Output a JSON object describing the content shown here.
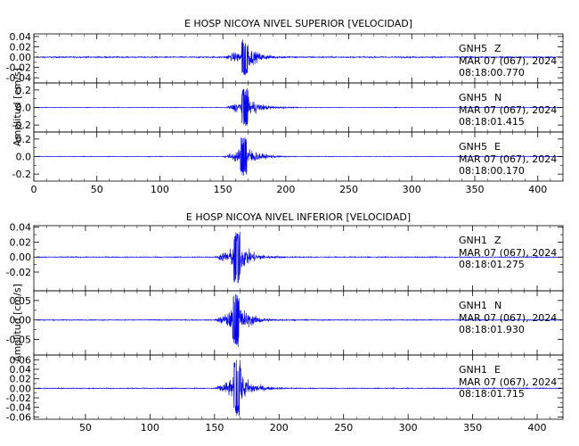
{
  "chart_data": [
    {
      "type": "line",
      "title": "E HOSP NICOYA NIVEL SUPERIOR [VELOCIDAD]",
      "ylabel": "Amplitud [cm/s]",
      "xlim": [
        0,
        420
      ],
      "xticks": [
        "0",
        "50",
        "100",
        "150",
        "200",
        "250",
        "300",
        "350",
        "400"
      ],
      "line_color": "#0000ff",
      "traces": [
        {
          "station": "GNH5",
          "component": "Z",
          "date": "MAR 07 (067), 2024",
          "time": "08:18:00.770",
          "ylim": [
            -0.05,
            0.045
          ],
          "yticks": [
            "-0.04",
            "-0.02",
            "0.00",
            "0.02",
            "0.04"
          ],
          "ytick_values": [
            -0.04,
            -0.02,
            0.0,
            0.02,
            0.04
          ],
          "onset": 150,
          "peak": 167,
          "peak_amp": 0.035,
          "noise": 0.0015
        },
        {
          "station": "GNH5",
          "component": "N",
          "date": "MAR 07 (067), 2024",
          "time": "08:18:01.415",
          "ylim": [
            -0.28,
            0.28
          ],
          "yticks": [
            "-0.2",
            "0.0",
            "0.2"
          ],
          "ytick_values": [
            -0.2,
            0.0,
            0.2
          ],
          "onset": 152,
          "peak": 167,
          "peak_amp": 0.22,
          "noise": 0.004
        },
        {
          "station": "GNH5",
          "component": "E",
          "date": "MAR 07 (067), 2024",
          "time": "08:18:00.170",
          "ylim": [
            -0.28,
            0.28
          ],
          "yticks": [
            "-0.2",
            "0.0",
            "0.2"
          ],
          "ytick_values": [
            -0.2,
            0.0,
            0.2
          ],
          "onset": 150,
          "peak": 166,
          "peak_amp": 0.22,
          "noise": 0.004
        }
      ]
    },
    {
      "type": "line",
      "title": "E HOSP NICOYA NIVEL INFERIOR [VELOCIDAD]",
      "ylabel": "Amplitud [cm/s]",
      "xlim": [
        10,
        420
      ],
      "xticks": [
        "50",
        "100",
        "150",
        "200",
        "250",
        "300",
        "350",
        "400"
      ],
      "line_color": "#0000ff",
      "traces": [
        {
          "station": "GNH1",
          "component": "Z",
          "date": "MAR 07 (067), 2024",
          "time": "08:18:01.275",
          "ylim": [
            -0.045,
            0.042
          ],
          "yticks": [
            "-0.02",
            "0.00",
            "0.02",
            "0.04"
          ],
          "ytick_values": [
            -0.02,
            0.0,
            0.02,
            0.04
          ],
          "onset": 150,
          "peak": 167,
          "peak_amp": 0.035,
          "noise": 0.0008
        },
        {
          "station": "GNH1",
          "component": "N",
          "date": "MAR 07 (067), 2024",
          "time": "08:18:01.930",
          "ylim": [
            -0.09,
            0.075
          ],
          "yticks": [
            "-0.05",
            "0.00",
            "0.05"
          ],
          "ytick_values": [
            -0.05,
            0.0,
            0.05
          ],
          "onset": 150,
          "peak": 166,
          "peak_amp": 0.07,
          "noise": 0.0015
        },
        {
          "station": "GNH1",
          "component": "E",
          "date": "MAR 07 (067), 2024",
          "time": "08:18:01.715",
          "ylim": [
            -0.065,
            0.07
          ],
          "yticks": [
            "-0.06",
            "-0.04",
            "-0.02",
            "0.00",
            "0.02",
            "0.04",
            "0.06"
          ],
          "ytick_values": [
            -0.06,
            -0.04,
            -0.02,
            0.0,
            0.02,
            0.04,
            0.06
          ],
          "onset": 150,
          "peak": 167,
          "peak_amp": 0.06,
          "noise": 0.0012
        }
      ]
    }
  ]
}
